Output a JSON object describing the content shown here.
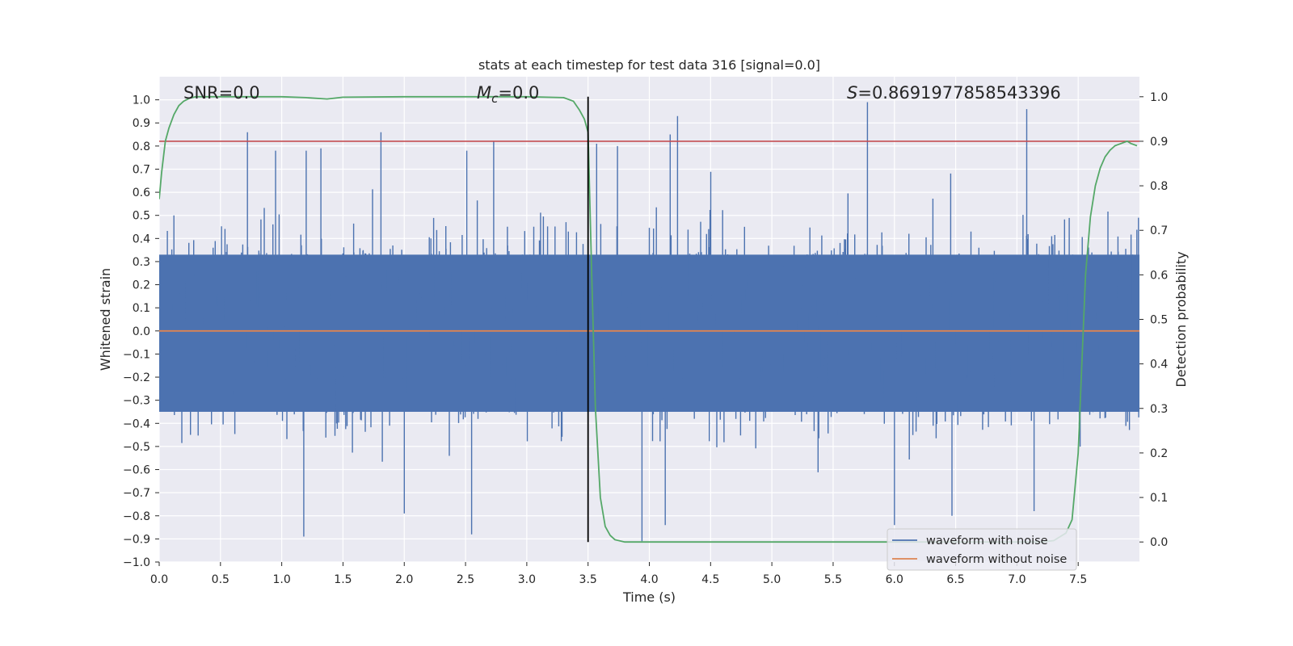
{
  "chart_data": {
    "type": "line",
    "title": "stats at each timestep for test data 316 [signal=0.0]",
    "xlabel": "Time (s)",
    "ylabel": "Whitened strain",
    "y2label": "Detection probability",
    "xlim": [
      0.0,
      8.0
    ],
    "ylim": [
      -1.0,
      1.1
    ],
    "y2lim": [
      -0.045,
      1.045
    ],
    "x_ticks": [
      0.0,
      0.5,
      1.0,
      1.5,
      2.0,
      2.5,
      3.0,
      3.5,
      4.0,
      4.5,
      5.0,
      5.5,
      6.0,
      6.5,
      7.0,
      7.5
    ],
    "x_tick_labels": [
      "0.0",
      "0.5",
      "1.0",
      "1.5",
      "2.0",
      "2.5",
      "3.0",
      "3.5",
      "4.0",
      "4.5",
      "5.0",
      "5.5",
      "6.0",
      "6.5",
      "7.0",
      "7.5"
    ],
    "y_ticks": [
      1.0,
      0.9,
      0.8,
      0.7,
      0.6,
      0.5,
      0.4,
      0.3,
      0.2,
      0.1,
      0.0,
      -0.1,
      -0.2,
      -0.3,
      -0.4,
      -0.5,
      -0.6,
      -0.7,
      -0.8,
      -0.9,
      -1.0
    ],
    "y_tick_labels": [
      "1.0",
      "0.9",
      "0.8",
      "0.7",
      "0.6",
      "0.5",
      "0.4",
      "0.3",
      "0.2",
      "0.1",
      "0.0",
      "−0.1",
      "−0.2",
      "−0.3",
      "−0.4",
      "−0.5",
      "−0.6",
      "−0.7",
      "−0.8",
      "−0.9",
      "−1.0"
    ],
    "y2_ticks": [
      1.0,
      0.9,
      0.8,
      0.7,
      0.6,
      0.5,
      0.4,
      0.3,
      0.2,
      0.1,
      0.0
    ],
    "y2_tick_labels": [
      "1.0",
      "0.9",
      "0.8",
      "0.7",
      "0.6",
      "0.5",
      "0.4",
      "0.3",
      "0.2",
      "0.1",
      "0.0"
    ],
    "annotations": {
      "snr": "SNR=0.0",
      "mc_symbol": "M",
      "mc_subscript": "c",
      "mc_value": "=0.0",
      "s_symbol": "S",
      "s_value": "=0.8691977858543396"
    },
    "threshold": {
      "value": 0.9,
      "axis": "right"
    },
    "marker_time": 3.5,
    "series": [
      {
        "name": "waveform with noise",
        "axis": "left",
        "noise_sigma": 0.18,
        "band_quantiles": [
          -0.35,
          0.33
        ],
        "peaks": [
          {
            "x": 0.72,
            "y": 0.86
          },
          {
            "x": 0.95,
            "y": 0.78
          },
          {
            "x": 1.2,
            "y": 0.78
          },
          {
            "x": 1.32,
            "y": 0.79
          },
          {
            "x": 1.81,
            "y": 0.86
          },
          {
            "x": 2.51,
            "y": 0.78
          },
          {
            "x": 2.73,
            "y": 0.82
          },
          {
            "x": 3.57,
            "y": 0.81
          },
          {
            "x": 3.74,
            "y": 0.8
          },
          {
            "x": 4.17,
            "y": 0.85
          },
          {
            "x": 4.23,
            "y": 0.93
          },
          {
            "x": 5.78,
            "y": 0.99
          },
          {
            "x": 7.08,
            "y": 0.96
          },
          {
            "x": 1.18,
            "y": -0.89
          },
          {
            "x": 2.55,
            "y": -0.88
          },
          {
            "x": 3.94,
            "y": -0.91
          },
          {
            "x": 4.13,
            "y": -0.84
          },
          {
            "x": 2.0,
            "y": -0.79
          },
          {
            "x": 6.47,
            "y": -0.8
          },
          {
            "x": 7.14,
            "y": -0.78
          },
          {
            "x": 6.0,
            "y": -0.84
          }
        ]
      },
      {
        "name": "waveform without noise",
        "axis": "left",
        "x": [
          0.0,
          8.0
        ],
        "values": [
          0.0,
          0.0
        ]
      },
      {
        "name": "detection probability",
        "axis": "right",
        "x": [
          0.0,
          0.02,
          0.05,
          0.08,
          0.12,
          0.16,
          0.2,
          0.25,
          0.3,
          0.4,
          0.6,
          1.0,
          1.2,
          1.37,
          1.5,
          2.0,
          2.5,
          3.0,
          3.3,
          3.38,
          3.43,
          3.47,
          3.5,
          3.53,
          3.56,
          3.6,
          3.64,
          3.68,
          3.72,
          3.8,
          4.0,
          5.0,
          6.0,
          7.0,
          7.2,
          7.3,
          7.4,
          7.45,
          7.5,
          7.53,
          7.56,
          7.6,
          7.64,
          7.68,
          7.72,
          7.76,
          7.8,
          7.85,
          7.9,
          7.93,
          7.98
        ],
        "values": [
          0.77,
          0.83,
          0.9,
          0.93,
          0.96,
          0.98,
          0.99,
          0.997,
          1.0,
          1.0,
          1.0,
          1.0,
          0.998,
          0.995,
          0.999,
          1.0,
          1.0,
          1.0,
          0.998,
          0.99,
          0.97,
          0.95,
          0.92,
          0.6,
          0.3,
          0.1,
          0.035,
          0.015,
          0.005,
          0.0,
          0.0,
          0.0,
          0.0,
          0.0,
          0.0,
          0.003,
          0.02,
          0.05,
          0.2,
          0.4,
          0.6,
          0.73,
          0.8,
          0.84,
          0.865,
          0.88,
          0.89,
          0.895,
          0.9,
          0.895,
          0.89
        ]
      }
    ],
    "legend": {
      "placement": "bottom-right",
      "entries": [
        {
          "label": "waveform with noise",
          "color": "#4c72b0"
        },
        {
          "label": "waveform without noise",
          "color": "#dd8452"
        }
      ]
    },
    "colors": {
      "noise": "#4c72b0",
      "clean": "#dd8452",
      "probability": "#55a868",
      "threshold": "#c44e52",
      "marker": "#000000",
      "axes_bg": "#eaeaf2",
      "grid": "#ffffff"
    }
  }
}
